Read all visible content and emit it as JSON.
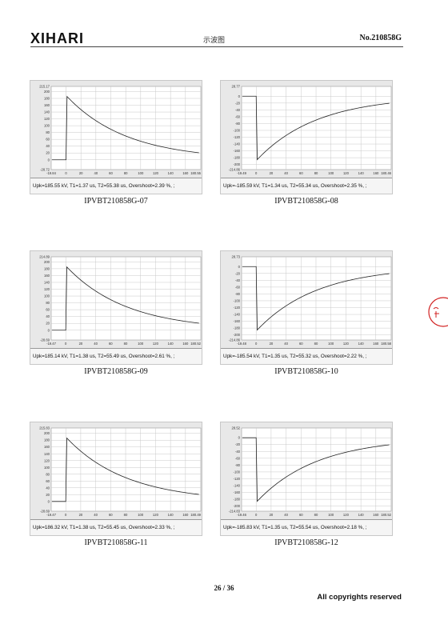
{
  "header": {
    "logo": "XIHARI",
    "title": "示波图",
    "doc_no": "No.210858G"
  },
  "panels": [
    {
      "caption": "IPVBT210858G-07",
      "status": "Upk=185.55 kV, T1=1.37 us, T2=55.38 us, Overshoot=2.39 %, ;",
      "chart_data": {
        "type": "line",
        "polarity": "positive",
        "xlim": [
          -19.84,
          180.55
        ],
        "ylim": [
          -28.72,
          215.17
        ],
        "x_first_label": "-19.84",
        "x_last_label": "180.55",
        "y_top_label": "215.17",
        "y_bottom_label": "-28.72",
        "x_ticks": [
          "0",
          "20",
          "40",
          "60",
          "80",
          "100",
          "120",
          "140",
          "160"
        ],
        "y_ticks": [
          "200",
          "180",
          "160",
          "140",
          "120",
          "100",
          "80",
          "60",
          "40",
          "20",
          "0"
        ],
        "peak": 185.55,
        "tail_end": 20.5
      }
    },
    {
      "caption": "IPVBT210858G-08",
      "status": "Upk=-185.59 kV, T1=1.34 us, T2=55.34 us, Overshoot=2.35 %, ;",
      "chart_data": {
        "type": "line",
        "polarity": "negative",
        "xlim": [
          -19.49,
          180.46
        ],
        "ylim": [
          -214.86,
          28.77
        ],
        "x_first_label": "-19.49",
        "x_last_label": "180.46",
        "y_top_label": "28.77",
        "y_bottom_label": "-214.86",
        "x_ticks": [
          "0",
          "20",
          "40",
          "60",
          "80",
          "100",
          "120",
          "140",
          "160"
        ],
        "y_ticks": [
          "0",
          "-20",
          "-40",
          "-60",
          "-80",
          "-100",
          "-120",
          "-140",
          "-160",
          "-180",
          "-200"
        ],
        "peak": -185.59,
        "tail_end": -20.5
      }
    },
    {
      "caption": "IPVBT210858G-09",
      "status": "Upk=185.14 kV, T1=1.38 us, T2=55.49 us, Overshoot=2.61 %, ;",
      "chart_data": {
        "type": "line",
        "polarity": "positive",
        "xlim": [
          -19.47,
          180.52
        ],
        "ylim": [
          -28.69,
          214.89
        ],
        "x_first_label": "-19.47",
        "x_last_label": "180.52",
        "y_top_label": "214.89",
        "y_bottom_label": "-28.69",
        "x_ticks": [
          "0",
          "20",
          "40",
          "60",
          "80",
          "100",
          "120",
          "140",
          "160"
        ],
        "y_ticks": [
          "200",
          "180",
          "160",
          "140",
          "120",
          "100",
          "80",
          "60",
          "40",
          "20",
          "0"
        ],
        "peak": 185.14,
        "tail_end": 20.5
      }
    },
    {
      "caption": "IPVBT210858G-10",
      "status": "Upk=-185.54 kV, T1=1.35 us, T2=55.32 us, Overshoot=2.22 %, ;",
      "chart_data": {
        "type": "line",
        "polarity": "negative",
        "xlim": [
          -19.48,
          180.58
        ],
        "ylim": [
          -214.86,
          28.73
        ],
        "x_first_label": "-19.48",
        "x_last_label": "180.58",
        "y_top_label": "28.73",
        "y_bottom_label": "-214.86",
        "x_ticks": [
          "0",
          "20",
          "40",
          "60",
          "80",
          "100",
          "120",
          "140",
          "160"
        ],
        "y_ticks": [
          "0",
          "-20",
          "-40",
          "-60",
          "-80",
          "-100",
          "-120",
          "-140",
          "-160",
          "-180",
          "-200"
        ],
        "peak": -185.54,
        "tail_end": -20.5
      }
    },
    {
      "caption": "IPVBT210858G-11",
      "status": "Upk=186.32 kV, T1=1.38 us, T2=55.45 us, Overshoot=2.33 %, ;",
      "chart_data": {
        "type": "line",
        "polarity": "positive",
        "xlim": [
          -19.47,
          180.49
        ],
        "ylim": [
          -28.69,
          215.83
        ],
        "x_first_label": "-19.47",
        "x_last_label": "180.49",
        "y_top_label": "215.83",
        "y_bottom_label": "-28.69",
        "x_ticks": [
          "0",
          "20",
          "40",
          "60",
          "80",
          "100",
          "120",
          "140",
          "160"
        ],
        "y_ticks": [
          "200",
          "180",
          "160",
          "140",
          "120",
          "100",
          "80",
          "60",
          "40",
          "20",
          "0"
        ],
        "peak": 186.32,
        "tail_end": 20.5
      }
    },
    {
      "caption": "IPVBT210858G-12",
      "status": "Upk=-185.83 kV, T1=1.35 us, T2=55.54 us, Overshoot=2.18 %, ;",
      "chart_data": {
        "type": "line",
        "polarity": "negative",
        "xlim": [
          -19.46,
          180.52
        ],
        "ylim": [
          -214.83,
          28.52
        ],
        "x_first_label": "-19.46",
        "x_last_label": "180.52",
        "y_top_label": "28.52",
        "y_bottom_label": "-214.83",
        "x_ticks": [
          "0",
          "20",
          "40",
          "60",
          "80",
          "100",
          "120",
          "140",
          "160"
        ],
        "y_ticks": [
          "0",
          "-20",
          "-40",
          "-60",
          "-80",
          "-100",
          "-120",
          "-140",
          "-160",
          "-180",
          "-200"
        ],
        "peak": -185.83,
        "tail_end": -20.5
      }
    }
  ],
  "footer": {
    "page": "26 / 36",
    "copyright": "All copyrights reserved"
  },
  "colors": {
    "panel_bg": "#e8e8e8",
    "plot_bg": "#ffffff",
    "grid": "#c8c8c8",
    "trace": "#222222",
    "stamp": "#d22222"
  },
  "icons": {
    "stamp": "red-seal-stamp"
  }
}
